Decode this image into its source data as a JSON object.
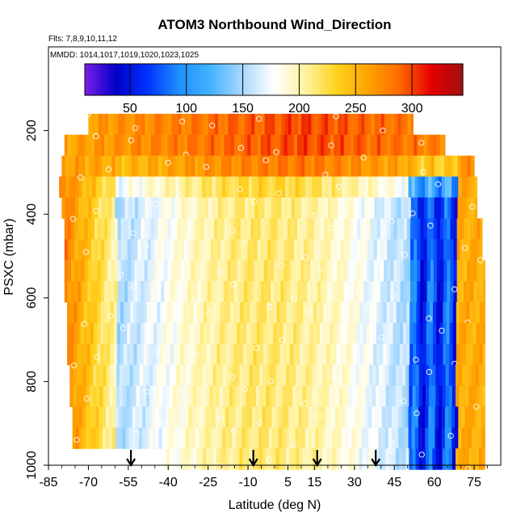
{
  "chart_data": {
    "type": "heatmap",
    "title": "ATOM3 Northbound Wind_Direction",
    "flights_label": "Flts: 7,8,9,10,11,12",
    "dates_label": "MMDD: 1014,1017,1019,1020,1023,1025",
    "xlabel": "Latitude (deg N)",
    "ylabel": "PSXC (mbar)",
    "xlim": [
      -85,
      85
    ],
    "ylim": [
      1000,
      0
    ],
    "x_ticks": [
      -85,
      -70,
      -55,
      -40,
      -25,
      -10,
      5,
      15,
      30,
      45,
      60,
      75
    ],
    "y_ticks": [
      200,
      400,
      600,
      800,
      1000
    ],
    "colorbar": {
      "range": [
        10,
        345
      ],
      "ticks": [
        50,
        100,
        150,
        200,
        250,
        300
      ],
      "colors": [
        "#7a1fe6",
        "#0000c8",
        "#0033ff",
        "#1e90ff",
        "#43b3ff",
        "#a8d8ff",
        "#ffffff",
        "#fff3a0",
        "#ffd21e",
        "#ffa200",
        "#ff6a00",
        "#e60000",
        "#a01010"
      ]
    },
    "layers": [
      {
        "p": 185,
        "lat": [
          -70,
          52
        ]
      },
      {
        "p": 235,
        "lat": [
          -79,
          64
        ]
      },
      {
        "p": 285,
        "lat": [
          -80,
          75
        ]
      },
      {
        "p": 335,
        "lat": [
          -81,
          76
        ]
      },
      {
        "p": 385,
        "lat": [
          -80,
          76
        ]
      },
      {
        "p": 435,
        "lat": [
          -79,
          78
        ]
      },
      {
        "p": 485,
        "lat": [
          -79,
          78
        ]
      },
      {
        "p": 535,
        "lat": [
          -79,
          79
        ]
      },
      {
        "p": 585,
        "lat": [
          -79,
          79
        ]
      },
      {
        "p": 635,
        "lat": [
          -78,
          79
        ]
      },
      {
        "p": 685,
        "lat": [
          -78,
          79
        ]
      },
      {
        "p": 735,
        "lat": [
          -78,
          79
        ]
      },
      {
        "p": 785,
        "lat": [
          -77,
          79
        ]
      },
      {
        "p": 835,
        "lat": [
          -77,
          79
        ]
      },
      {
        "p": 885,
        "lat": [
          -76,
          79
        ]
      },
      {
        "p": 935,
        "lat": [
          -76,
          79
        ]
      },
      {
        "p": 985,
        "lat": [
          -42,
          79
        ]
      }
    ],
    "descent_markers_lat": [
      -54,
      -8,
      16,
      38
    ]
  }
}
